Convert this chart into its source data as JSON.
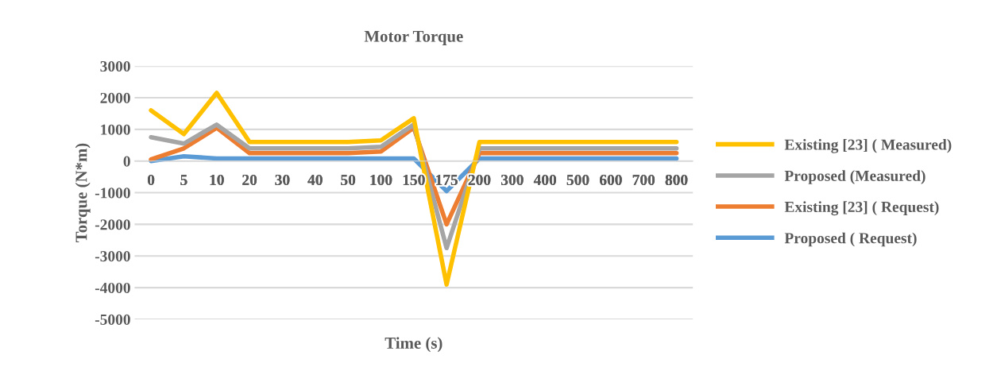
{
  "chart_data": {
    "type": "line",
    "title": "Motor Torque",
    "xlabel": "Time (s)",
    "ylabel": "Torque (N*m)",
    "categories": [
      "0",
      "5",
      "10",
      "20",
      "30",
      "40",
      "50",
      "100",
      "150",
      "175",
      "200",
      "300",
      "400",
      "500",
      "600",
      "700",
      "800"
    ],
    "series": [
      {
        "name": "Existing [23] ( Measured)",
        "color": "#ffc000",
        "values": [
          1600,
          850,
          2150,
          600,
          600,
          600,
          600,
          650,
          1350,
          -3900,
          600,
          600,
          600,
          600,
          600,
          600,
          600
        ]
      },
      {
        "name": "Proposed (Measured)",
        "color": "#a5a5a5",
        "values": [
          750,
          550,
          1150,
          400,
          400,
          400,
          400,
          450,
          1150,
          -2750,
          400,
          400,
          400,
          400,
          400,
          400,
          400
        ]
      },
      {
        "name": "Existing [23] ( Request)",
        "color": "#ed7d31",
        "values": [
          50,
          400,
          1050,
          250,
          250,
          250,
          250,
          300,
          1050,
          -2000,
          250,
          250,
          250,
          250,
          250,
          250,
          250
        ]
      },
      {
        "name": "Proposed ( Request)",
        "color": "#5b9bd5",
        "values": [
          0,
          150,
          80,
          80,
          80,
          80,
          80,
          80,
          80,
          -950,
          80,
          80,
          80,
          80,
          80,
          80,
          80
        ]
      }
    ],
    "ylim": [
      -5000,
      3000
    ],
    "yticks": [
      -5000,
      -4000,
      -3000,
      -2000,
      -1000,
      0,
      1000,
      2000,
      3000
    ],
    "grid": "y",
    "legend": "right",
    "marker": "none",
    "line_style": "solid"
  }
}
